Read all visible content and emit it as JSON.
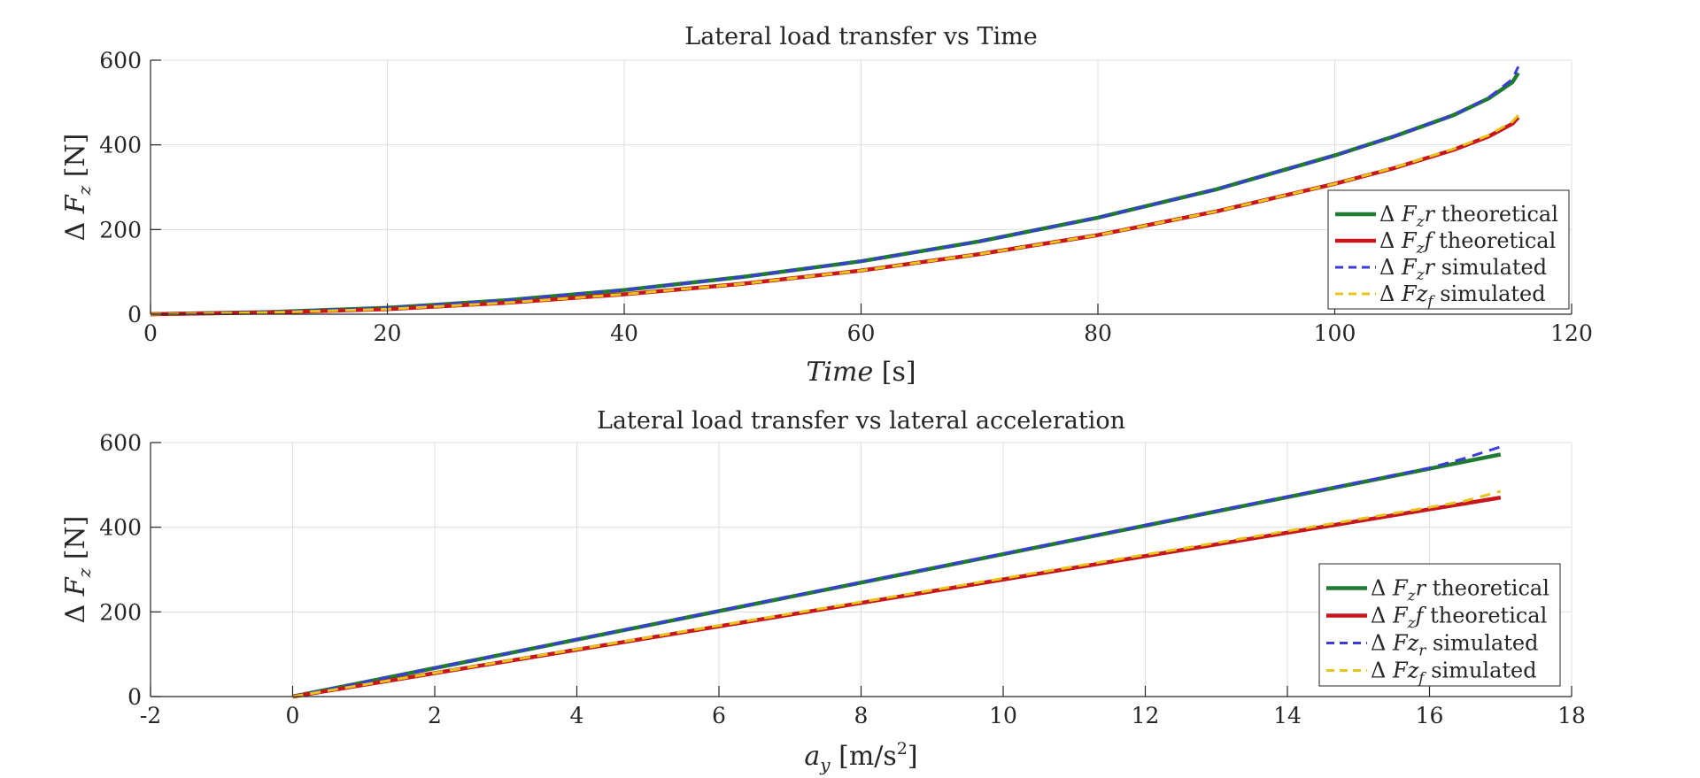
{
  "chart_data": [
    {
      "type": "line",
      "title": "Lateral load transfer vs Time",
      "xlabel": "Time [s]",
      "xlabel_main": "Time",
      "xlabel_unit": "[s]",
      "ylabel": "Δ F_z [N]",
      "xlim": [
        0,
        120
      ],
      "ylim": [
        0,
        600
      ],
      "xticks": [
        0,
        20,
        40,
        60,
        80,
        100,
        120
      ],
      "xtick_labels": [
        "0",
        "20",
        "40",
        "60",
        "80",
        "100",
        "120"
      ],
      "yticks": [
        0,
        200,
        400,
        600
      ],
      "ytick_labels": [
        "0",
        "200",
        "400",
        "600"
      ],
      "grid": true,
      "legend_position": "bottom-right",
      "series": [
        {
          "name": "Δ F_z r theoretical",
          "legend_main": "Δ F",
          "legend_sub": "z",
          "legend_rest": "r theoretical",
          "color": "#1f7a32",
          "style": "solid",
          "x": [
            0,
            10,
            20,
            30,
            40,
            50,
            60,
            70,
            80,
            90,
            100,
            105,
            110,
            113,
            115,
            115.5
          ],
          "y": [
            0,
            5,
            15,
            33,
            57,
            88,
            125,
            172,
            228,
            295,
            375,
            420,
            470,
            510,
            548,
            570
          ]
        },
        {
          "name": "Δ F_z f theoretical",
          "legend_main": "Δ F",
          "legend_sub": "z",
          "legend_rest": "f theoretical",
          "color": "#c8161d",
          "style": "solid",
          "x": [
            0,
            10,
            20,
            30,
            40,
            50,
            60,
            70,
            80,
            90,
            100,
            105,
            110,
            113,
            115,
            115.5
          ],
          "y": [
            0,
            4,
            12,
            27,
            47,
            72,
            103,
            142,
            187,
            243,
            308,
            345,
            388,
            420,
            450,
            465
          ]
        },
        {
          "name": "Δ F_z r simulated",
          "legend_main": "Δ F",
          "legend_sub": "z",
          "legend_rest": "r simulated",
          "color": "#3b3bd9",
          "style": "dashed",
          "x": [
            0,
            10,
            20,
            30,
            40,
            50,
            60,
            70,
            80,
            90,
            100,
            105,
            110,
            113,
            115,
            115.5
          ],
          "y": [
            0,
            5,
            15,
            33,
            57,
            88,
            125,
            172,
            228,
            295,
            375,
            420,
            470,
            512,
            555,
            585
          ]
        },
        {
          "name": "Δ Fz_f simulated",
          "legend_main": "Δ Fz",
          "legend_sub": "f",
          "legend_rest": "simulated",
          "color": "#e8c31a",
          "style": "dashed",
          "x": [
            0,
            10,
            20,
            30,
            40,
            50,
            60,
            70,
            80,
            90,
            100,
            105,
            110,
            113,
            115,
            115.5
          ],
          "y": [
            0,
            4,
            12,
            27,
            47,
            72,
            103,
            142,
            187,
            243,
            308,
            346,
            390,
            423,
            455,
            470
          ]
        }
      ]
    },
    {
      "type": "line",
      "title": "Lateral load transfer vs lateral acceleration",
      "xlabel": "a_y [m/s^2]",
      "xlabel_main": "a",
      "xlabel_sub": "y",
      "xlabel_unit_a": "[m/s",
      "xlabel_unit_sup": "2",
      "xlabel_unit_b": "]",
      "ylabel": "Δ F_z [N]",
      "xlim": [
        -2,
        18
      ],
      "ylim": [
        0,
        600
      ],
      "xticks": [
        -2,
        0,
        2,
        4,
        6,
        8,
        10,
        12,
        14,
        16,
        18
      ],
      "xtick_labels": [
        "-2",
        "0",
        "2",
        "4",
        "6",
        "8",
        "10",
        "12",
        "14",
        "16",
        "18"
      ],
      "yticks": [
        0,
        200,
        400,
        600
      ],
      "ytick_labels": [
        "0",
        "200",
        "400",
        "600"
      ],
      "grid": true,
      "legend_position": "bottom-right",
      "series": [
        {
          "name": "Δ F_z r theoretical",
          "legend_main": "Δ F",
          "legend_sub": "z",
          "legend_rest": "r theoretical",
          "color": "#1f7a32",
          "style": "solid",
          "x": [
            0,
            17
          ],
          "y": [
            0,
            572
          ]
        },
        {
          "name": "Δ F_z f theoretical",
          "legend_main": "Δ F",
          "legend_sub": "z",
          "legend_rest": "f theoretical",
          "color": "#c8161d",
          "style": "solid",
          "x": [
            0,
            17
          ],
          "y": [
            0,
            470
          ]
        },
        {
          "name": "Δ Fz_r simulated",
          "legend_main": "Δ Fz",
          "legend_sub": "r",
          "legend_rest": "simulated",
          "color": "#3b3bd9",
          "style": "dashed",
          "x": [
            0,
            16,
            16.5,
            17
          ],
          "y": [
            0,
            540,
            563,
            590
          ]
        },
        {
          "name": "Δ Fz_f simulated",
          "legend_main": "Δ Fz",
          "legend_sub": "f",
          "legend_rest": "simulated",
          "color": "#e8c31a",
          "style": "dashed",
          "x": [
            0,
            16,
            16.5,
            17
          ],
          "y": [
            0,
            447,
            462,
            485
          ]
        }
      ]
    }
  ]
}
